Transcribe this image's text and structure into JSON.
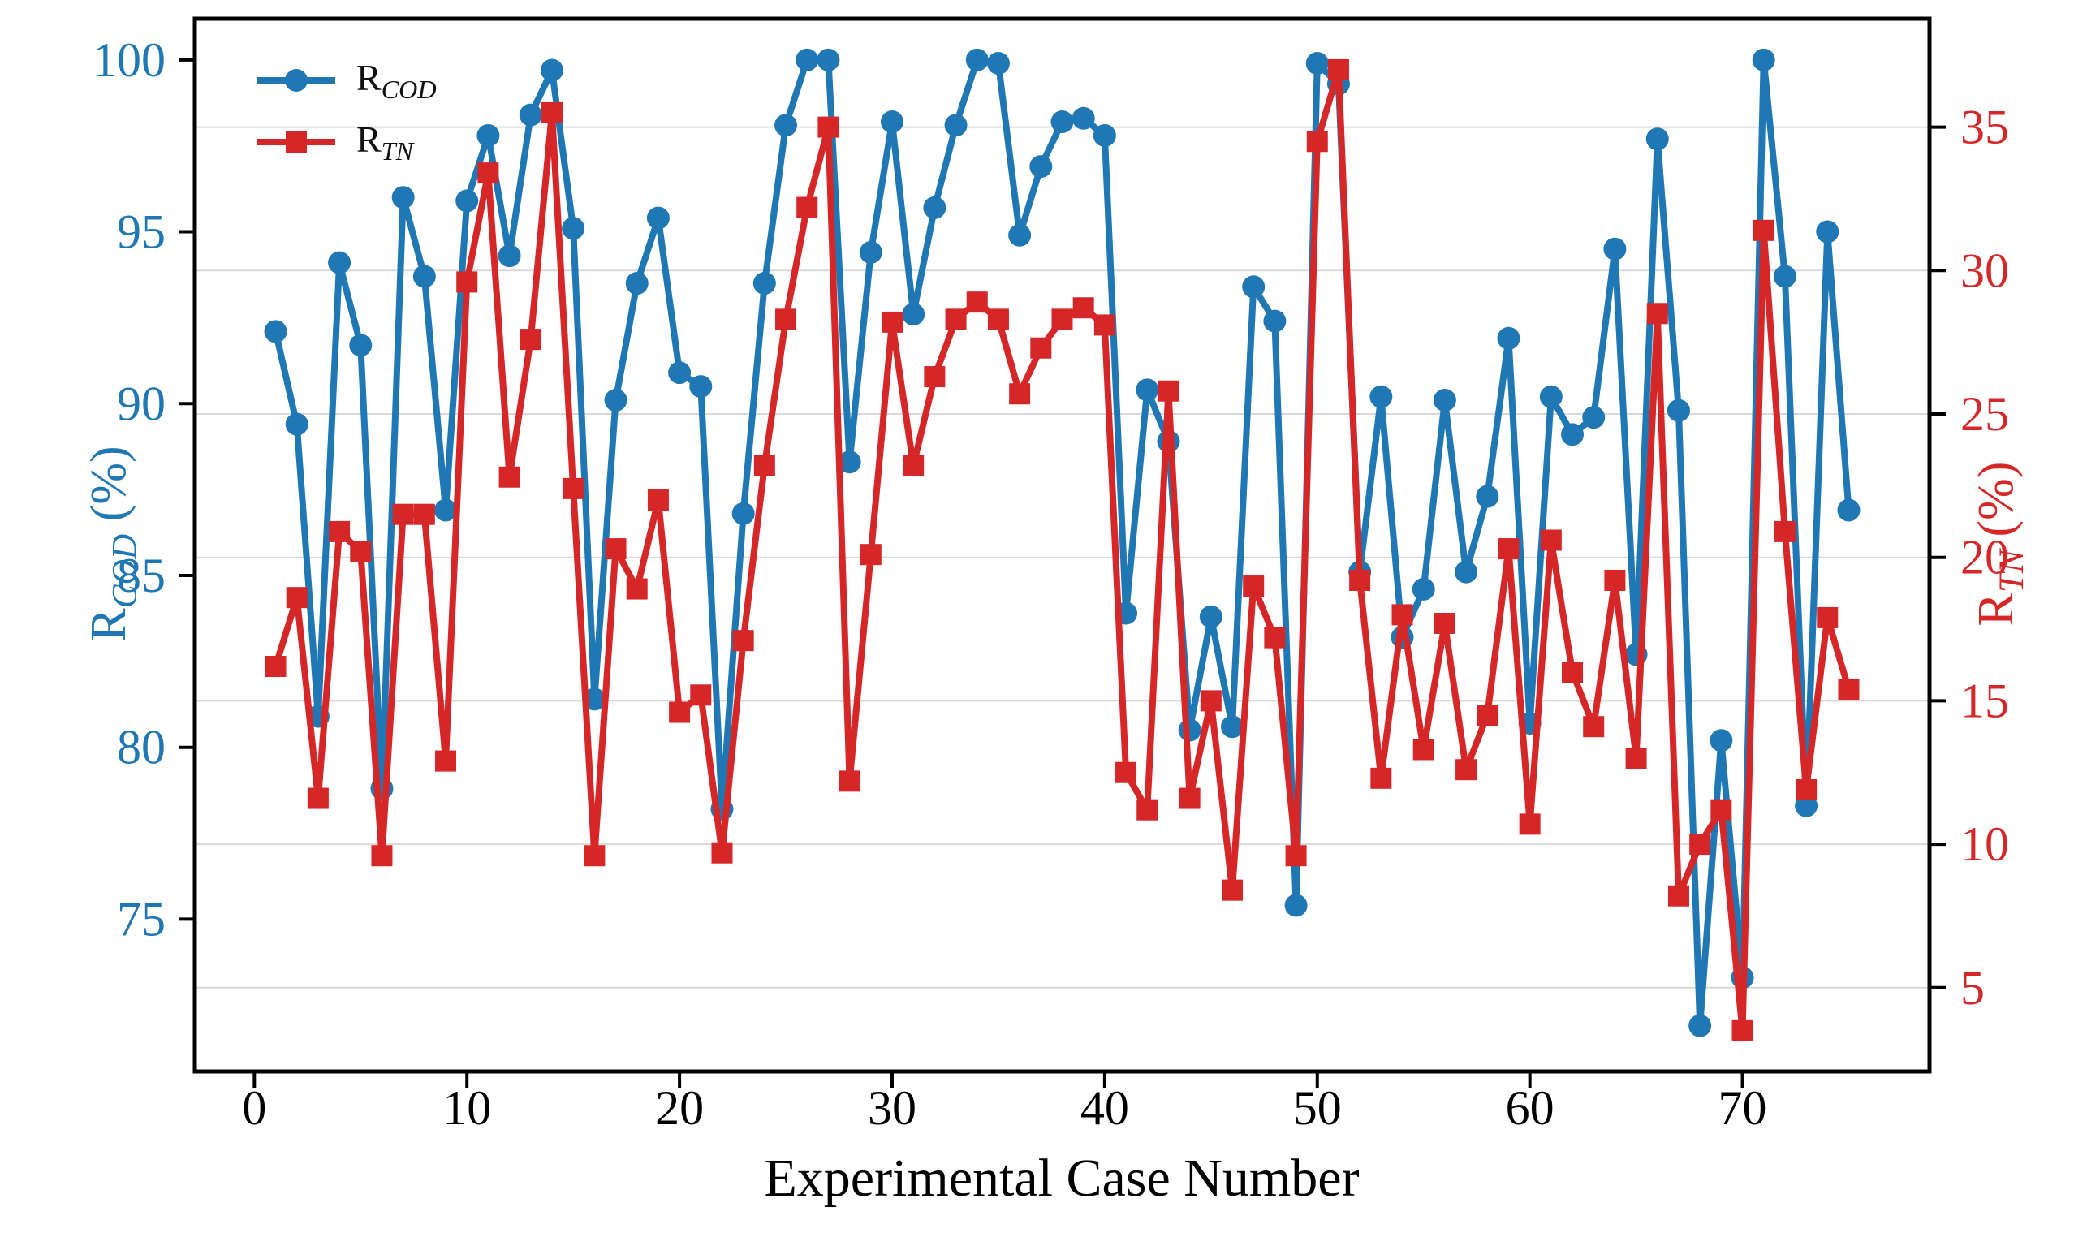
{
  "figure": {
    "xlabel": "Experimental Case Number",
    "left_axis_label_prefix": "R",
    "left_axis_label_sub": "COD",
    "left_axis_label_suffix": " (%)",
    "right_axis_label_prefix": "R",
    "right_axis_label_sub": "TN",
    "right_axis_label_suffix": " (%)"
  },
  "legend": {
    "items": [
      {
        "prefix": "R",
        "sub": "COD",
        "color": "#1f77b4",
        "marker": "circle"
      },
      {
        "prefix": "R",
        "sub": "TN",
        "color": "#d62728",
        "marker": "square"
      }
    ]
  },
  "chart_data": {
    "type": "line",
    "title": "",
    "xlabel": "Experimental Case Number",
    "grid": "horizontal gridlines at right-axis ticks",
    "legend_position": "upper left, frameless",
    "x_axis": {
      "ticks": [
        0,
        10,
        20,
        30,
        40,
        50,
        60,
        70
      ],
      "range": [
        -2.8,
        78.8
      ],
      "color": "#000000"
    },
    "left_axis": {
      "label": "R_COD (%)",
      "ticks": [
        75,
        80,
        85,
        90,
        95,
        100
      ],
      "range": [
        70.57,
        101.2
      ],
      "color": "#1f77b4"
    },
    "right_axis": {
      "label": "R_TN (%)",
      "ticks": [
        5,
        10,
        15,
        20,
        25,
        30,
        35
      ],
      "range": [
        2.08,
        38.78
      ],
      "color": "#d62728"
    },
    "x": [
      1,
      2,
      3,
      4,
      5,
      6,
      7,
      8,
      9,
      10,
      11,
      12,
      13,
      14,
      15,
      16,
      17,
      18,
      19,
      20,
      21,
      22,
      23,
      24,
      25,
      26,
      27,
      28,
      29,
      30,
      31,
      32,
      33,
      34,
      35,
      36,
      37,
      38,
      39,
      40,
      41,
      42,
      43,
      44,
      45,
      46,
      47,
      48,
      49,
      50,
      51,
      52,
      53,
      54,
      55,
      56,
      57,
      58,
      59,
      60,
      61,
      62,
      63,
      64,
      65,
      66,
      67,
      68,
      69,
      70,
      71,
      72,
      73,
      74,
      75
    ],
    "series": [
      {
        "name": "R_COD",
        "axis": "left",
        "color": "#1f77b4",
        "marker": "circle",
        "values": [
          92.1,
          89.4,
          80.9,
          94.1,
          91.7,
          78.8,
          96.0,
          93.7,
          86.9,
          95.9,
          97.8,
          94.3,
          98.4,
          99.7,
          95.1,
          81.4,
          90.1,
          93.5,
          95.4,
          90.9,
          90.5,
          78.2,
          86.8,
          93.5,
          98.1,
          100.0,
          100.0,
          88.3,
          94.4,
          98.2,
          92.6,
          95.7,
          98.1,
          100.0,
          99.9,
          94.9,
          96.9,
          98.2,
          98.3,
          97.8,
          83.9,
          90.4,
          88.9,
          80.5,
          83.8,
          80.6,
          93.4,
          92.4,
          75.4,
          99.9,
          99.3,
          85.1,
          90.2,
          83.2,
          84.6,
          90.1,
          85.1,
          87.3,
          91.9,
          80.7,
          90.2,
          89.1,
          89.6,
          94.5,
          82.7,
          97.7,
          89.8,
          71.9,
          80.2,
          73.3,
          100.0,
          93.7,
          78.3,
          95.0,
          86.9
        ]
      },
      {
        "name": "R_TN",
        "axis": "right",
        "color": "#d62728",
        "marker": "square",
        "values": [
          16.2,
          18.6,
          11.6,
          20.9,
          20.2,
          9.6,
          21.5,
          21.5,
          12.9,
          29.6,
          33.4,
          22.8,
          27.6,
          35.5,
          22.4,
          9.6,
          20.3,
          18.9,
          22.0,
          14.6,
          15.2,
          9.7,
          17.1,
          23.2,
          28.3,
          32.2,
          35.0,
          12.2,
          20.1,
          28.2,
          23.2,
          26.3,
          28.3,
          28.9,
          28.3,
          25.7,
          27.3,
          28.3,
          28.7,
          28.1,
          12.5,
          11.2,
          25.8,
          11.6,
          15.0,
          8.4,
          19.0,
          17.2,
          9.6,
          34.5,
          37.0,
          19.2,
          12.3,
          18.0,
          13.3,
          17.7,
          12.6,
          14.5,
          20.3,
          10.7,
          20.6,
          16.0,
          14.1,
          19.2,
          13.0,
          28.5,
          8.2,
          10.0,
          11.2,
          3.5,
          31.4,
          20.9,
          11.9,
          17.9,
          15.4
        ]
      }
    ]
  },
  "style": {
    "grid_color": "#d9d9d9",
    "spine_color": "#000000",
    "background": "#ffffff"
  }
}
